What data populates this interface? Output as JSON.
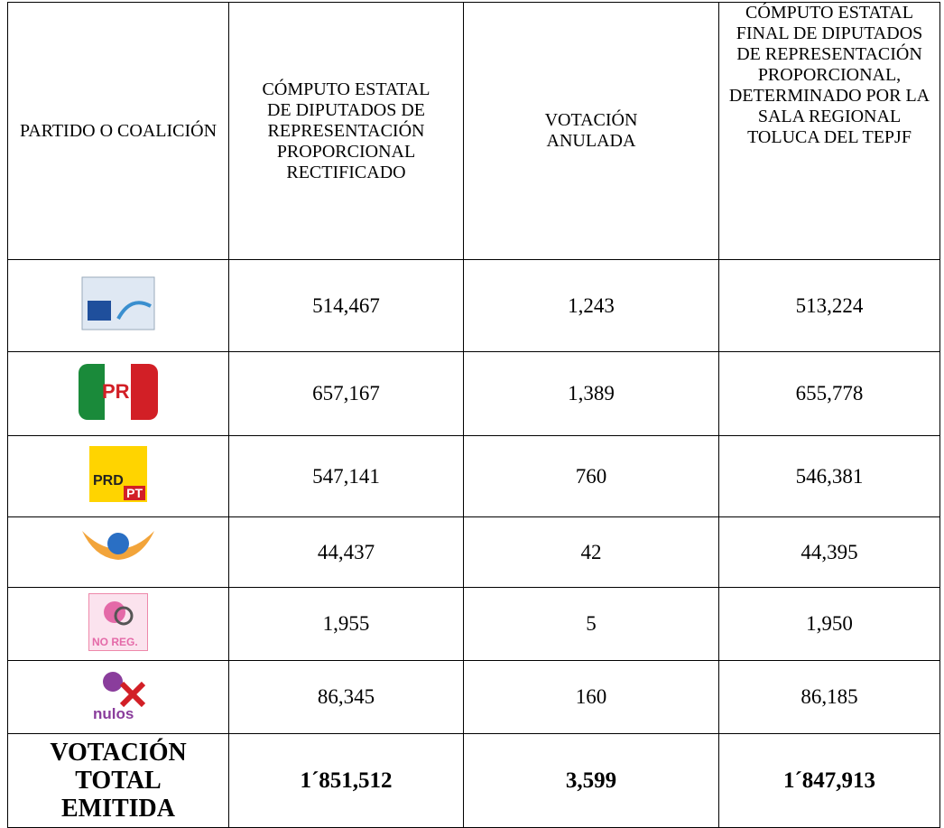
{
  "table": {
    "header": [
      "PARTIDO O COALICIÓN",
      "CÓMPUTO ESTATAL DE DIPUTADOS DE REPRESENTACIÓN PROPORCIONAL RECTIFICADO",
      "VOTACIÓN ANULADA",
      "CÓMPUTO ESTATAL FINAL DE DIPUTADOS DE REPRESENTACIÓN PROPORCIONAL, DETERMINADO POR LA SALA REGIONAL TOLUCA DEL TEPJF"
    ],
    "rows": [
      {
        "logo": [],
        "cells": [
          "514,467",
          "1,243",
          "513,224"
        ]
      },
      {
        "logo": [
          "PRI"
        ],
        "cells": [
          "657,167",
          "1,389",
          "655,778"
        ]
      },
      {
        "logo": [
          "PRD",
          "PT"
        ],
        "cells": [
          "547,141",
          "760",
          "546,381"
        ]
      },
      {
        "logo": [],
        "cells": [
          "44,437",
          "42",
          "44,395"
        ]
      },
      {
        "logo": [
          "NO REG."
        ],
        "cells": [
          "1,955",
          "5",
          "1,950"
        ]
      },
      {
        "logo": [
          "nulos"
        ],
        "cells": [
          "86,345",
          "160",
          "86,185"
        ]
      }
    ],
    "total": {
      "label": "VOTACIÓN TOTAL EMITIDA",
      "cells": [
        "1´851,512",
        "3,599",
        "1´847,913"
      ]
    }
  }
}
